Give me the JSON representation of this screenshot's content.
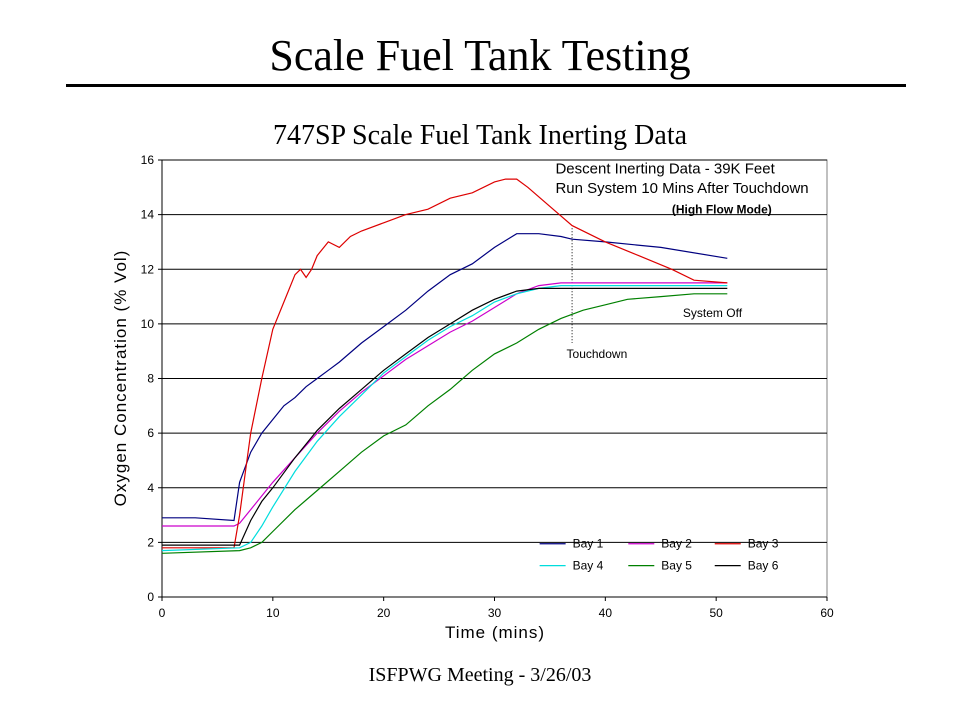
{
  "slide": {
    "title": "Scale Fuel Tank Testing",
    "footer": "ISFPWG Meeting - 3/26/03"
  },
  "chart_data": {
    "type": "line",
    "title": "747SP Scale Fuel Tank Inerting Data",
    "xlabel": "Time (mins)",
    "ylabel": "Oxygen Concentration (% Vol)",
    "xlim": [
      0,
      60
    ],
    "ylim": [
      0,
      16
    ],
    "xticks": [
      0,
      10,
      20,
      30,
      40,
      50,
      60
    ],
    "yticks": [
      0,
      2,
      4,
      6,
      8,
      10,
      12,
      14,
      16
    ],
    "grid": "horizontal",
    "legend": "bottom-right",
    "annotations": [
      {
        "text": "Descent Inerting Data - 39K Feet",
        "x": 35.5,
        "y": 15.5
      },
      {
        "text": "Run System 10 Mins After Touchdown",
        "x": 35.5,
        "y": 14.8
      },
      {
        "text": "(High Flow Mode)",
        "x": 46,
        "y": 14.05
      },
      {
        "text": "System Off",
        "x": 47,
        "y": 10.25
      },
      {
        "text": "Touchdown",
        "x": 36.5,
        "y": 8.75
      }
    ],
    "touchdown_x": 37,
    "series": [
      {
        "name": "Bay 1",
        "color": "#000080",
        "x": [
          0,
          3,
          6.5,
          7,
          8,
          9,
          10,
          11,
          12,
          13,
          14,
          15,
          16,
          18,
          20,
          22,
          24,
          26,
          28,
          30,
          32,
          34,
          36,
          37,
          40,
          45,
          51
        ],
        "y": [
          2.9,
          2.9,
          2.8,
          4.2,
          5.3,
          6.0,
          6.5,
          7.0,
          7.3,
          7.7,
          8.0,
          8.3,
          8.6,
          9.3,
          9.9,
          10.5,
          11.2,
          11.8,
          12.2,
          12.8,
          13.3,
          13.3,
          13.2,
          13.1,
          13.0,
          12.8,
          12.4
        ]
      },
      {
        "name": "Bay 2",
        "color": "#cc00cc",
        "x": [
          0,
          6.5,
          7,
          8,
          10,
          12,
          14,
          16,
          18,
          20,
          22,
          24,
          26,
          28,
          30,
          32,
          34,
          36,
          38,
          40,
          45,
          51
        ],
        "y": [
          2.6,
          2.6,
          2.7,
          3.2,
          4.2,
          5.1,
          6.0,
          6.8,
          7.5,
          8.1,
          8.7,
          9.2,
          9.7,
          10.1,
          10.6,
          11.1,
          11.4,
          11.5,
          11.5,
          11.5,
          11.5,
          11.5
        ]
      },
      {
        "name": "Bay 3",
        "color": "#dd0000",
        "x": [
          0,
          6.5,
          7,
          7.5,
          8,
          9,
          10,
          11,
          12,
          12.5,
          13,
          13.5,
          14,
          15,
          16,
          17,
          18,
          20,
          22,
          24,
          26,
          28,
          30,
          31,
          32,
          33,
          35,
          37,
          40,
          43,
          46,
          48,
          51
        ],
        "y": [
          1.8,
          1.8,
          3.0,
          4.5,
          6.0,
          8.0,
          9.8,
          10.8,
          11.8,
          12.0,
          11.7,
          12.0,
          12.5,
          13.0,
          12.8,
          13.2,
          13.4,
          13.7,
          14.0,
          14.2,
          14.6,
          14.8,
          15.2,
          15.3,
          15.3,
          15.0,
          14.3,
          13.6,
          13.0,
          12.5,
          12.0,
          11.6,
          11.5
        ]
      },
      {
        "name": "Bay 4",
        "color": "#00dddd",
        "x": [
          0,
          7,
          8,
          9,
          10,
          12,
          14,
          16,
          18,
          20,
          22,
          24,
          26,
          28,
          30,
          32,
          34,
          36,
          38,
          40,
          45,
          51
        ],
        "y": [
          1.7,
          1.8,
          2.0,
          2.6,
          3.3,
          4.6,
          5.7,
          6.6,
          7.4,
          8.2,
          8.8,
          9.4,
          9.9,
          10.3,
          10.8,
          11.1,
          11.3,
          11.4,
          11.4,
          11.4,
          11.4,
          11.4
        ]
      },
      {
        "name": "Bay 5",
        "color": "#008000",
        "x": [
          0,
          7,
          8,
          9,
          10,
          12,
          14,
          16,
          18,
          20,
          22,
          24,
          26,
          28,
          30,
          32,
          34,
          36,
          38,
          40,
          42,
          45,
          48,
          51
        ],
        "y": [
          1.6,
          1.7,
          1.8,
          2.0,
          2.4,
          3.2,
          3.9,
          4.6,
          5.3,
          5.9,
          6.3,
          7.0,
          7.6,
          8.3,
          8.9,
          9.3,
          9.8,
          10.2,
          10.5,
          10.7,
          10.9,
          11.0,
          11.1,
          11.1
        ]
      },
      {
        "name": "Bay 6",
        "color": "#000000",
        "x": [
          0,
          6.5,
          7,
          8,
          9,
          10,
          12,
          14,
          16,
          18,
          20,
          22,
          24,
          26,
          28,
          30,
          32,
          34,
          36,
          38,
          40,
          45,
          51
        ],
        "y": [
          1.9,
          1.9,
          1.9,
          2.8,
          3.5,
          4.0,
          5.1,
          6.1,
          6.9,
          7.6,
          8.3,
          8.9,
          9.5,
          10.0,
          10.5,
          10.9,
          11.2,
          11.3,
          11.3,
          11.3,
          11.3,
          11.3,
          11.3
        ]
      }
    ]
  }
}
